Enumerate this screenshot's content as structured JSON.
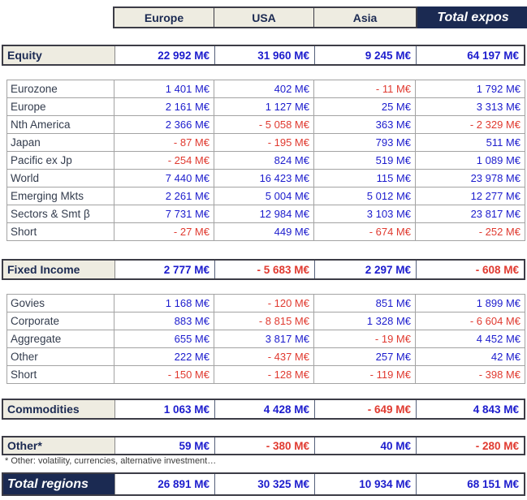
{
  "header": {
    "regions": [
      "Europe",
      "USA",
      "Asia"
    ],
    "total_label": "Total expos"
  },
  "equity": {
    "label": "Equity",
    "values": [
      "22 992 M€",
      "31 960 M€",
      "9 245 M€",
      "64 197 M€"
    ]
  },
  "equity_detail": [
    {
      "label": "Eurozone",
      "values": [
        "1 401 M€",
        "402 M€",
        "- 11 M€",
        "1 792 M€"
      ]
    },
    {
      "label": "Europe",
      "values": [
        "2 161 M€",
        "1 127 M€",
        "25 M€",
        "3 313 M€"
      ]
    },
    {
      "label": "Nth America",
      "values": [
        "2 366 M€",
        "- 5 058 M€",
        "363 M€",
        "- 2 329 M€"
      ]
    },
    {
      "label": "Japan",
      "values": [
        "- 87 M€",
        "- 195 M€",
        "793 M€",
        "511 M€"
      ]
    },
    {
      "label": "Pacific ex Jp",
      "values": [
        "- 254 M€",
        "824 M€",
        "519 M€",
        "1 089 M€"
      ]
    },
    {
      "label": "World",
      "values": [
        "7 440 M€",
        "16 423 M€",
        "115 M€",
        "23 978 M€"
      ]
    },
    {
      "label": "Emerging Mkts",
      "values": [
        "2 261 M€",
        "5 004 M€",
        "5 012 M€",
        "12 277 M€"
      ]
    },
    {
      "label": "Sectors & Smt β",
      "values": [
        "7 731 M€",
        "12 984 M€",
        "3 103 M€",
        "23 817 M€"
      ]
    },
    {
      "label": "Short",
      "values": [
        "- 27 M€",
        "449 M€",
        "- 674 M€",
        "- 252 M€"
      ]
    }
  ],
  "fixed_income": {
    "label": "Fixed Income",
    "values": [
      "2 777 M€",
      "- 5 683 M€",
      "2 297 M€",
      "- 608 M€"
    ]
  },
  "fixed_income_detail": [
    {
      "label": "Govies",
      "values": [
        "1 168 M€",
        "- 120 M€",
        "851 M€",
        "1 899 M€"
      ]
    },
    {
      "label": "Corporate",
      "values": [
        "883 M€",
        "- 8 815 M€",
        "1 328 M€",
        "- 6 604 M€"
      ]
    },
    {
      "label": "Aggregate",
      "values": [
        "655 M€",
        "3 817 M€",
        "- 19 M€",
        "4 452 M€"
      ]
    },
    {
      "label": "Other",
      "values": [
        "222 M€",
        "- 437 M€",
        "257 M€",
        "42 M€"
      ]
    },
    {
      "label": "Short",
      "values": [
        "- 150 M€",
        "- 128 M€",
        "- 119 M€",
        "- 398 M€"
      ]
    }
  ],
  "commodities": {
    "label": "Commodities",
    "values": [
      "1 063 M€",
      "4 428 M€",
      "- 649 M€",
      "4 843 M€"
    ]
  },
  "other": {
    "label": "Other*",
    "values": [
      "59 M€",
      "- 380 M€",
      "40 M€",
      "- 280 M€"
    ]
  },
  "footnote": "* Other: volatility, currencies, alternative investment…",
  "total_regions": {
    "label": "Total regions",
    "values": [
      "26 891 M€",
      "30 325 M€",
      "10 934 M€",
      "68 151 M€"
    ]
  },
  "colors": {
    "positive_value": "#1c1ccd",
    "negative_value": "#e03a30",
    "header_navy": "#1b2a52",
    "label_beige": "#eeece1",
    "thin_border": "#a3a3a3",
    "thick_border": "#3c3c46"
  }
}
